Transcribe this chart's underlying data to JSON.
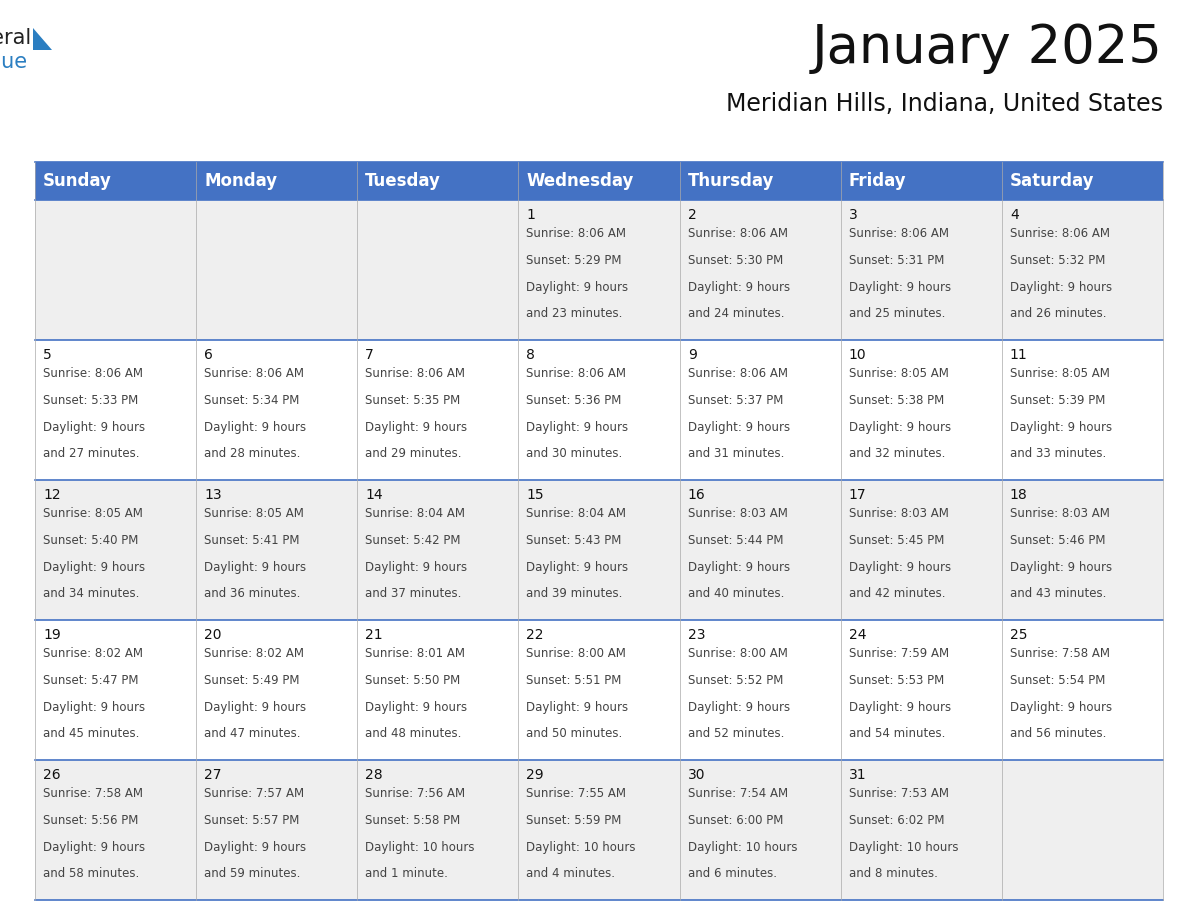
{
  "title": "January 2025",
  "subtitle": "Meridian Hills, Indiana, United States",
  "header_color": "#4472C4",
  "header_text_color": "#FFFFFF",
  "cell_bg_color": "#FFFFFF",
  "alt_cell_bg_color": "#EFEFEF",
  "day_names": [
    "Sunday",
    "Monday",
    "Tuesday",
    "Wednesday",
    "Thursday",
    "Friday",
    "Saturday"
  ],
  "title_fontsize": 38,
  "subtitle_fontsize": 17,
  "header_fontsize": 12,
  "day_num_fontsize": 10,
  "cell_fontsize": 8.5,
  "days": [
    {
      "day": 1,
      "col": 3,
      "row": 0,
      "sunrise": "8:06 AM",
      "sunset": "5:29 PM",
      "daylight_hours": 9,
      "daylight_minutes": 23
    },
    {
      "day": 2,
      "col": 4,
      "row": 0,
      "sunrise": "8:06 AM",
      "sunset": "5:30 PM",
      "daylight_hours": 9,
      "daylight_minutes": 24
    },
    {
      "day": 3,
      "col": 5,
      "row": 0,
      "sunrise": "8:06 AM",
      "sunset": "5:31 PM",
      "daylight_hours": 9,
      "daylight_minutes": 25
    },
    {
      "day": 4,
      "col": 6,
      "row": 0,
      "sunrise": "8:06 AM",
      "sunset": "5:32 PM",
      "daylight_hours": 9,
      "daylight_minutes": 26
    },
    {
      "day": 5,
      "col": 0,
      "row": 1,
      "sunrise": "8:06 AM",
      "sunset": "5:33 PM",
      "daylight_hours": 9,
      "daylight_minutes": 27
    },
    {
      "day": 6,
      "col": 1,
      "row": 1,
      "sunrise": "8:06 AM",
      "sunset": "5:34 PM",
      "daylight_hours": 9,
      "daylight_minutes": 28
    },
    {
      "day": 7,
      "col": 2,
      "row": 1,
      "sunrise": "8:06 AM",
      "sunset": "5:35 PM",
      "daylight_hours": 9,
      "daylight_minutes": 29
    },
    {
      "day": 8,
      "col": 3,
      "row": 1,
      "sunrise": "8:06 AM",
      "sunset": "5:36 PM",
      "daylight_hours": 9,
      "daylight_minutes": 30
    },
    {
      "day": 9,
      "col": 4,
      "row": 1,
      "sunrise": "8:06 AM",
      "sunset": "5:37 PM",
      "daylight_hours": 9,
      "daylight_minutes": 31
    },
    {
      "day": 10,
      "col": 5,
      "row": 1,
      "sunrise": "8:05 AM",
      "sunset": "5:38 PM",
      "daylight_hours": 9,
      "daylight_minutes": 32
    },
    {
      "day": 11,
      "col": 6,
      "row": 1,
      "sunrise": "8:05 AM",
      "sunset": "5:39 PM",
      "daylight_hours": 9,
      "daylight_minutes": 33
    },
    {
      "day": 12,
      "col": 0,
      "row": 2,
      "sunrise": "8:05 AM",
      "sunset": "5:40 PM",
      "daylight_hours": 9,
      "daylight_minutes": 34
    },
    {
      "day": 13,
      "col": 1,
      "row": 2,
      "sunrise": "8:05 AM",
      "sunset": "5:41 PM",
      "daylight_hours": 9,
      "daylight_minutes": 36
    },
    {
      "day": 14,
      "col": 2,
      "row": 2,
      "sunrise": "8:04 AM",
      "sunset": "5:42 PM",
      "daylight_hours": 9,
      "daylight_minutes": 37
    },
    {
      "day": 15,
      "col": 3,
      "row": 2,
      "sunrise": "8:04 AM",
      "sunset": "5:43 PM",
      "daylight_hours": 9,
      "daylight_minutes": 39
    },
    {
      "day": 16,
      "col": 4,
      "row": 2,
      "sunrise": "8:03 AM",
      "sunset": "5:44 PM",
      "daylight_hours": 9,
      "daylight_minutes": 40
    },
    {
      "day": 17,
      "col": 5,
      "row": 2,
      "sunrise": "8:03 AM",
      "sunset": "5:45 PM",
      "daylight_hours": 9,
      "daylight_minutes": 42
    },
    {
      "day": 18,
      "col": 6,
      "row": 2,
      "sunrise": "8:03 AM",
      "sunset": "5:46 PM",
      "daylight_hours": 9,
      "daylight_minutes": 43
    },
    {
      "day": 19,
      "col": 0,
      "row": 3,
      "sunrise": "8:02 AM",
      "sunset": "5:47 PM",
      "daylight_hours": 9,
      "daylight_minutes": 45
    },
    {
      "day": 20,
      "col": 1,
      "row": 3,
      "sunrise": "8:02 AM",
      "sunset": "5:49 PM",
      "daylight_hours": 9,
      "daylight_minutes": 47
    },
    {
      "day": 21,
      "col": 2,
      "row": 3,
      "sunrise": "8:01 AM",
      "sunset": "5:50 PM",
      "daylight_hours": 9,
      "daylight_minutes": 48
    },
    {
      "day": 22,
      "col": 3,
      "row": 3,
      "sunrise": "8:00 AM",
      "sunset": "5:51 PM",
      "daylight_hours": 9,
      "daylight_minutes": 50
    },
    {
      "day": 23,
      "col": 4,
      "row": 3,
      "sunrise": "8:00 AM",
      "sunset": "5:52 PM",
      "daylight_hours": 9,
      "daylight_minutes": 52
    },
    {
      "day": 24,
      "col": 5,
      "row": 3,
      "sunrise": "7:59 AM",
      "sunset": "5:53 PM",
      "daylight_hours": 9,
      "daylight_minutes": 54
    },
    {
      "day": 25,
      "col": 6,
      "row": 3,
      "sunrise": "7:58 AM",
      "sunset": "5:54 PM",
      "daylight_hours": 9,
      "daylight_minutes": 56
    },
    {
      "day": 26,
      "col": 0,
      "row": 4,
      "sunrise": "7:58 AM",
      "sunset": "5:56 PM",
      "daylight_hours": 9,
      "daylight_minutes": 58
    },
    {
      "day": 27,
      "col": 1,
      "row": 4,
      "sunrise": "7:57 AM",
      "sunset": "5:57 PM",
      "daylight_hours": 9,
      "daylight_minutes": 59
    },
    {
      "day": 28,
      "col": 2,
      "row": 4,
      "sunrise": "7:56 AM",
      "sunset": "5:58 PM",
      "daylight_hours": 10,
      "daylight_minutes": 1
    },
    {
      "day": 29,
      "col": 3,
      "row": 4,
      "sunrise": "7:55 AM",
      "sunset": "5:59 PM",
      "daylight_hours": 10,
      "daylight_minutes": 4
    },
    {
      "day": 30,
      "col": 4,
      "row": 4,
      "sunrise": "7:54 AM",
      "sunset": "6:00 PM",
      "daylight_hours": 10,
      "daylight_minutes": 6
    },
    {
      "day": 31,
      "col": 5,
      "row": 4,
      "sunrise": "7:53 AM",
      "sunset": "6:02 PM",
      "daylight_hours": 10,
      "daylight_minutes": 8
    }
  ],
  "num_rows": 5,
  "num_cols": 7,
  "border_color": "#AAAAAA",
  "line_color": "#4472C4",
  "logo_general_color": "#222222",
  "logo_blue_color": "#2B7EC1",
  "logo_triangle_color": "#2B7EC1"
}
